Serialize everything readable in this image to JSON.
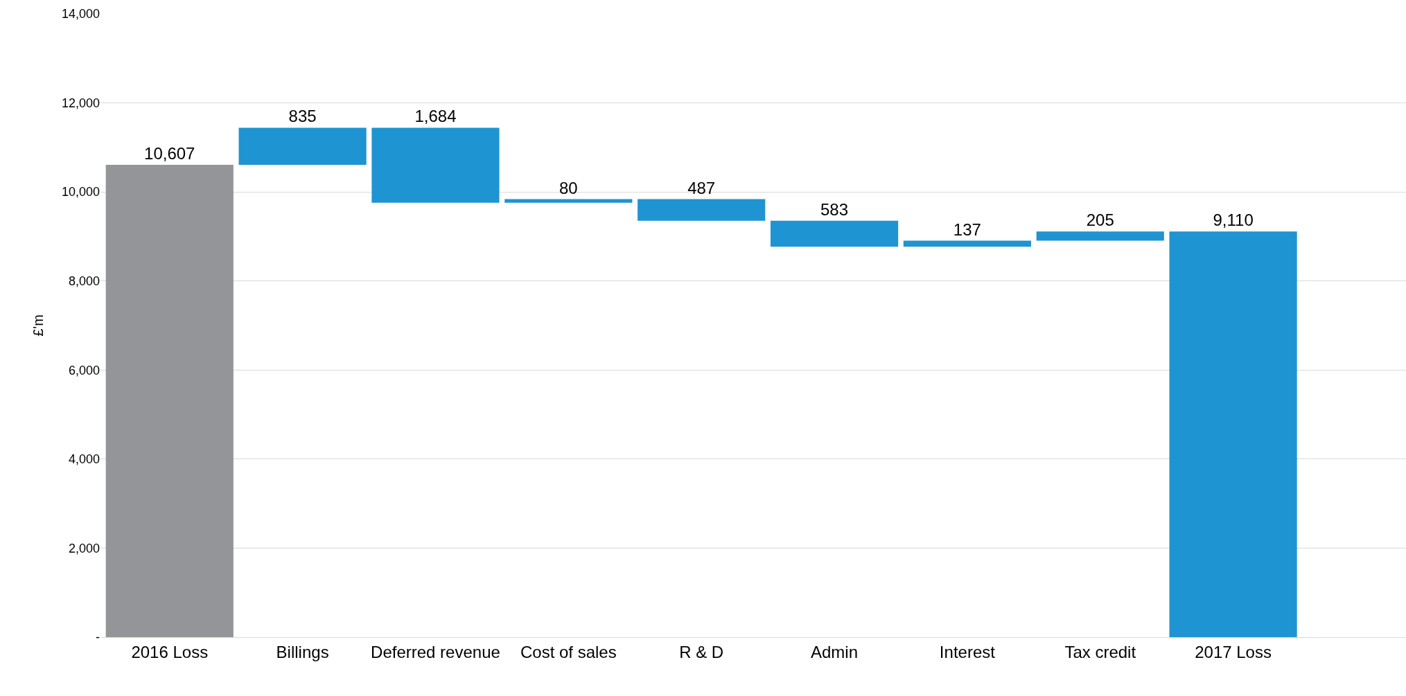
{
  "chart_data": {
    "type": "bar",
    "ylabel": "£'m",
    "categories": [
      "2016 Loss",
      "Billings",
      "Deferred revenue",
      "Cost of sales",
      "R & D",
      "Admin",
      "Interest",
      "Tax credit",
      "2017 Loss"
    ],
    "values": [
      10607,
      835,
      1684,
      80,
      487,
      583,
      137,
      205,
      9110
    ],
    "base": [
      0,
      10607,
      9758,
      9758,
      9351,
      8768,
      8768,
      8905,
      0
    ],
    "colors": [
      "#939598",
      "#1f94d2",
      "#1f94d2",
      "#1f94d2",
      "#1f94d2",
      "#1f94d2",
      "#1f94d2",
      "#1f94d2",
      "#1f94d2"
    ],
    "value_labels": [
      "10,607",
      "835",
      "1,684",
      "80",
      "487",
      "583",
      "137",
      "205",
      "9,110"
    ],
    "ylim": [
      0,
      14000
    ],
    "yticks": [
      {
        "value": 0,
        "label": "-"
      },
      {
        "value": 2000,
        "label": "2,000"
      },
      {
        "value": 4000,
        "label": "4,000"
      },
      {
        "value": 6000,
        "label": "6,000"
      },
      {
        "value": 8000,
        "label": "8,000"
      },
      {
        "value": 10000,
        "label": "10,000"
      },
      {
        "value": 12000,
        "label": "12,000"
      },
      {
        "value": 14000,
        "label": "14,000"
      }
    ],
    "grid": "y"
  }
}
